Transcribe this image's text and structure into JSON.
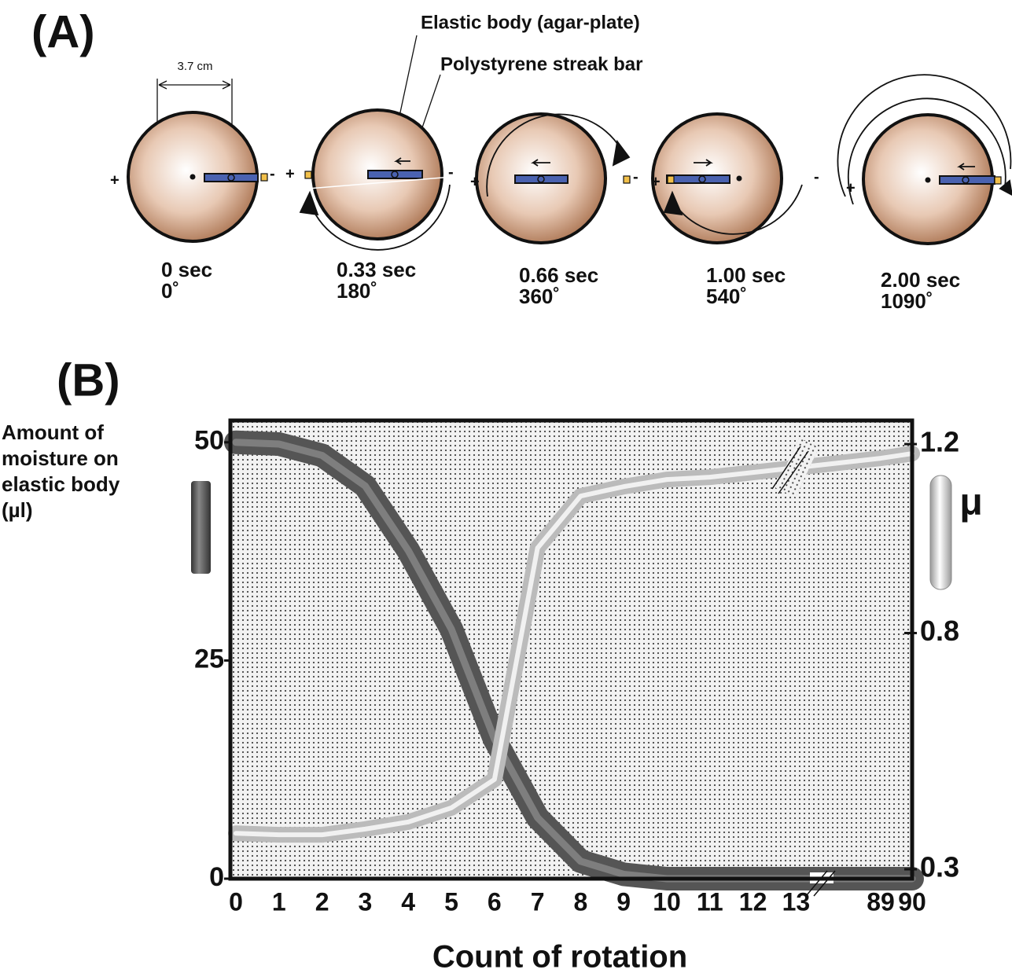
{
  "panel_a": {
    "label": "(A)",
    "elastic_body": "Elastic body (agar-plate)",
    "streak_bar": "Polystyrene streak bar",
    "diameter": "3.7 cm",
    "plus": "+",
    "minus": "-",
    "frames": [
      {
        "time": "0 sec",
        "angle": "0˚"
      },
      {
        "time": "0.33 sec",
        "angle": "180˚"
      },
      {
        "time": "0.66 sec",
        "angle": "360˚"
      },
      {
        "time": "1.00 sec",
        "angle": "540˚"
      },
      {
        "time": "2.00 sec",
        "angle": "1090˚"
      }
    ]
  },
  "chart_data": {
    "type": "line",
    "panel_label": "(B)",
    "x_label": "Count of rotation",
    "y_label": [
      "Amount of",
      "moisture on",
      "elastic body",
      "(µl)"
    ],
    "y2_label": "μ",
    "categories": [
      "0",
      "1",
      "2",
      "3",
      "4",
      "5",
      "6",
      "7",
      "8",
      "9",
      "10",
      "11",
      "12",
      "13",
      "89",
      "90"
    ],
    "series": [
      {
        "name": "moisture",
        "color": "#555555",
        "values": [
          50,
          49.8,
          48.5,
          45,
          37.6,
          28.6,
          16,
          7,
          2,
          0.5,
          0,
          0,
          0,
          0,
          0,
          0
        ]
      },
      {
        "name": "μ",
        "color": "#bbbbbb",
        "axis": "y2",
        "values": [
          0.376,
          0.373,
          0.373,
          0.385,
          0.4,
          0.43,
          0.49,
          0.98,
          1.09,
          1.11,
          1.125,
          1.13,
          1.14,
          1.15,
          1.17,
          1.18
        ]
      }
    ],
    "ylim": [
      0,
      52.5
    ],
    "yticks": [
      0,
      25,
      50
    ],
    "y2lim": [
      0.28,
      1.25
    ],
    "y2ticks": [
      0.3,
      0.8,
      1.2
    ]
  }
}
